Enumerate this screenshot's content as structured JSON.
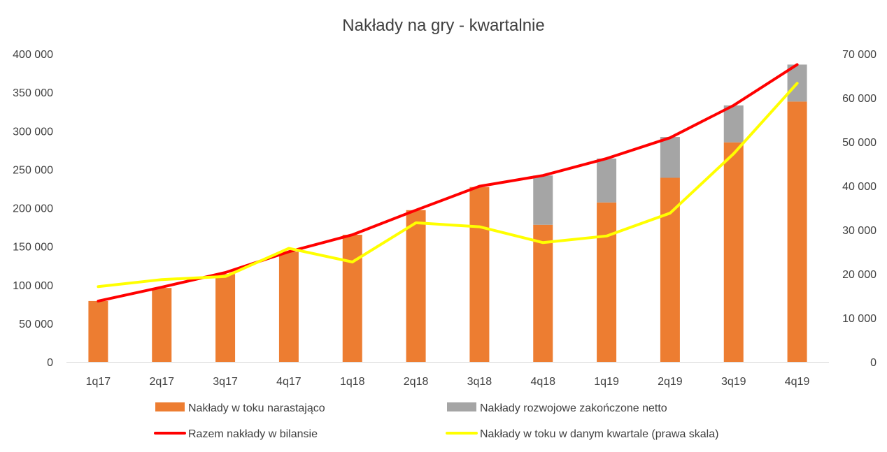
{
  "chart_data": {
    "type": "bar",
    "title": "Nakłady na gry - kwartalnie",
    "categories": [
      "1q17",
      "2q17",
      "3q17",
      "4q17",
      "1q18",
      "2q18",
      "3q18",
      "4q18",
      "1q19",
      "2q19",
      "3q19",
      "4q19"
    ],
    "y_left": {
      "min": 0,
      "max": 400000,
      "step": 50000,
      "tick_labels": [
        "0",
        "50 000",
        "100 000",
        "150 000",
        "200 000",
        "250 000",
        "300 000",
        "350 000",
        "400 000"
      ]
    },
    "y_right": {
      "min": 0,
      "max": 70000,
      "step": 10000,
      "tick_labels": [
        "0",
        "10 000",
        "20 000",
        "30 000",
        "40 000",
        "50 000",
        "60 000",
        "70 000"
      ]
    },
    "series": [
      {
        "name": "Nakłady w toku narastająco",
        "kind": "bar-stacked",
        "axis": "left",
        "color": "#ED7D31",
        "values": [
          79000,
          96000,
          114000,
          143000,
          165000,
          197000,
          227000,
          178000,
          207000,
          239000,
          285000,
          338000
        ]
      },
      {
        "name": "Nakłady rozwojowe zakończone netto",
        "kind": "bar-stacked",
        "axis": "left",
        "color": "#A5A5A5",
        "values": [
          0,
          0,
          0,
          0,
          0,
          0,
          0,
          64000,
          57000,
          53000,
          48000,
          48000
        ]
      },
      {
        "name": "Razem nakłady w bilansie",
        "kind": "line",
        "axis": "left",
        "color": "#FF0000",
        "values": [
          79000,
          97000,
          116000,
          143000,
          165000,
          197000,
          228000,
          242000,
          264000,
          291000,
          333000,
          386000
        ]
      },
      {
        "name": "Nakłady w toku w danym kwartale (prawa skala)",
        "kind": "line",
        "axis": "right",
        "color": "#FFFF00",
        "values": [
          17100,
          18700,
          19400,
          25800,
          22700,
          31600,
          30700,
          27100,
          28600,
          33800,
          47300,
          63300
        ]
      }
    ],
    "legend_position": "bottom",
    "grid": false
  }
}
